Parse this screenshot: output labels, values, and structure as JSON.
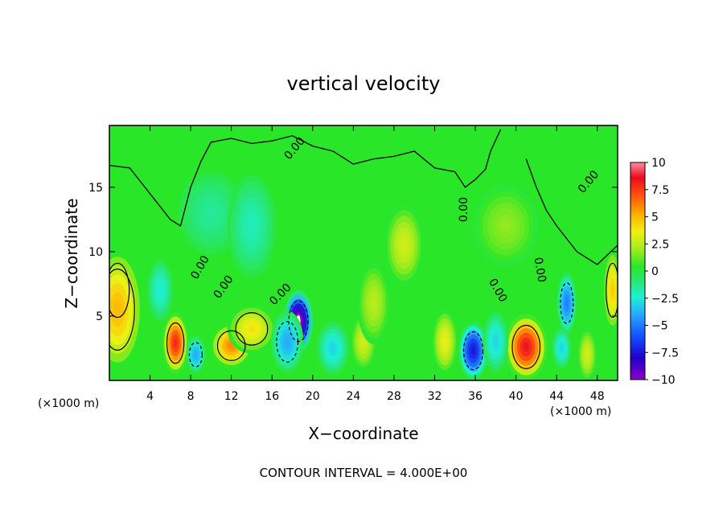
{
  "chart_data": {
    "type": "heatmap",
    "title": "vertical velocity",
    "xlabel": "X−coordinate",
    "ylabel": "Z−coordinate",
    "x_unit": "(×1000 m)",
    "y_unit": "(×1000 m)",
    "note": "CONTOUR INTERVAL = 4.000E+00",
    "xlim": [
      0,
      50
    ],
    "ylim": [
      0,
      19.8
    ],
    "x_ticks": [
      4,
      8,
      12,
      16,
      20,
      24,
      28,
      32,
      36,
      40,
      44,
      48
    ],
    "y_ticks": [
      5,
      10,
      15
    ],
    "colorbar": {
      "range": [
        -10,
        10
      ],
      "ticks": [
        10,
        7.5,
        5,
        2.5,
        0,
        -2.5,
        -5,
        -7.5,
        -10
      ],
      "tick_labels": [
        "10",
        "7.5",
        "5",
        "2.5",
        "0",
        "−2.5",
        "−5",
        "−7.5",
        "−10"
      ]
    },
    "contour_labels": [
      "0.00",
      "0.00",
      "0.00",
      "0.00",
      "0.00",
      "0.00",
      "0.00",
      "0.00"
    ],
    "features": [
      {
        "x": 0.8,
        "z": 7.0,
        "w": 9.5,
        "sx": 1.1,
        "sz": 2.0
      },
      {
        "x": 0.8,
        "z": 5.5,
        "w": 5,
        "sx": 1.6,
        "sz": 3.0
      },
      {
        "x": 6.5,
        "z": 2.9,
        "w": 8.0,
        "sx": 0.8,
        "sz": 1.5
      },
      {
        "x": 12.0,
        "z": 2.7,
        "w": 6.0,
        "sx": 1.3,
        "sz": 1.1
      },
      {
        "x": 14.0,
        "z": 4.0,
        "w": 4.0,
        "sx": 1.5,
        "sz": 1.2
      },
      {
        "x": 18.6,
        "z": 4.6,
        "w": -10.5,
        "sx": 0.9,
        "sz": 1.5
      },
      {
        "x": 17.5,
        "z": 3.0,
        "w": -4.0,
        "sx": 1.0,
        "sz": 1.5
      },
      {
        "x": 35.8,
        "z": 2.3,
        "w": -7.5,
        "sx": 0.9,
        "sz": 1.4
      },
      {
        "x": 41.0,
        "z": 2.6,
        "w": 8.5,
        "sx": 1.3,
        "sz": 1.6
      },
      {
        "x": 45.0,
        "z": 6.0,
        "w": -5.0,
        "sx": 0.6,
        "sz": 1.5
      },
      {
        "x": 44.5,
        "z": 2.5,
        "w": -3.0,
        "sx": 0.6,
        "sz": 1.0
      },
      {
        "x": 8.5,
        "z": 2.0,
        "w": -4.0,
        "sx": 0.6,
        "sz": 0.9
      },
      {
        "x": 5.0,
        "z": 7.0,
        "w": -2.5,
        "sx": 0.8,
        "sz": 1.5
      },
      {
        "x": 25.0,
        "z": 3.0,
        "w": 3.0,
        "sx": 0.8,
        "sz": 1.4
      },
      {
        "x": 26.0,
        "z": 6.0,
        "w": 2.5,
        "sx": 1.0,
        "sz": 2.0
      },
      {
        "x": 29.0,
        "z": 10.5,
        "w": 3.0,
        "sx": 1.2,
        "sz": 2.0
      },
      {
        "x": 22.0,
        "z": 2.5,
        "w": -3.0,
        "sx": 1.0,
        "sz": 1.3
      },
      {
        "x": 33.0,
        "z": 3.0,
        "w": 3.5,
        "sx": 0.8,
        "sz": 1.6
      },
      {
        "x": 38.0,
        "z": 3.0,
        "w": -3.0,
        "sx": 0.8,
        "sz": 1.5
      },
      {
        "x": 47.0,
        "z": 2.0,
        "w": 3.0,
        "sx": 0.6,
        "sz": 1.3
      },
      {
        "x": 49.5,
        "z": 7.0,
        "w": 4.5,
        "sx": 0.6,
        "sz": 2.0
      },
      {
        "x": 10.0,
        "z": 13.0,
        "w": -1.5,
        "sx": 2.0,
        "sz": 2.0
      },
      {
        "x": 39.0,
        "z": 12.0,
        "w": 1.8,
        "sx": 2.0,
        "sz": 2.0
      },
      {
        "x": 14.0,
        "z": 12.0,
        "w": -2.0,
        "sx": 1.5,
        "sz": 2.5
      }
    ]
  }
}
